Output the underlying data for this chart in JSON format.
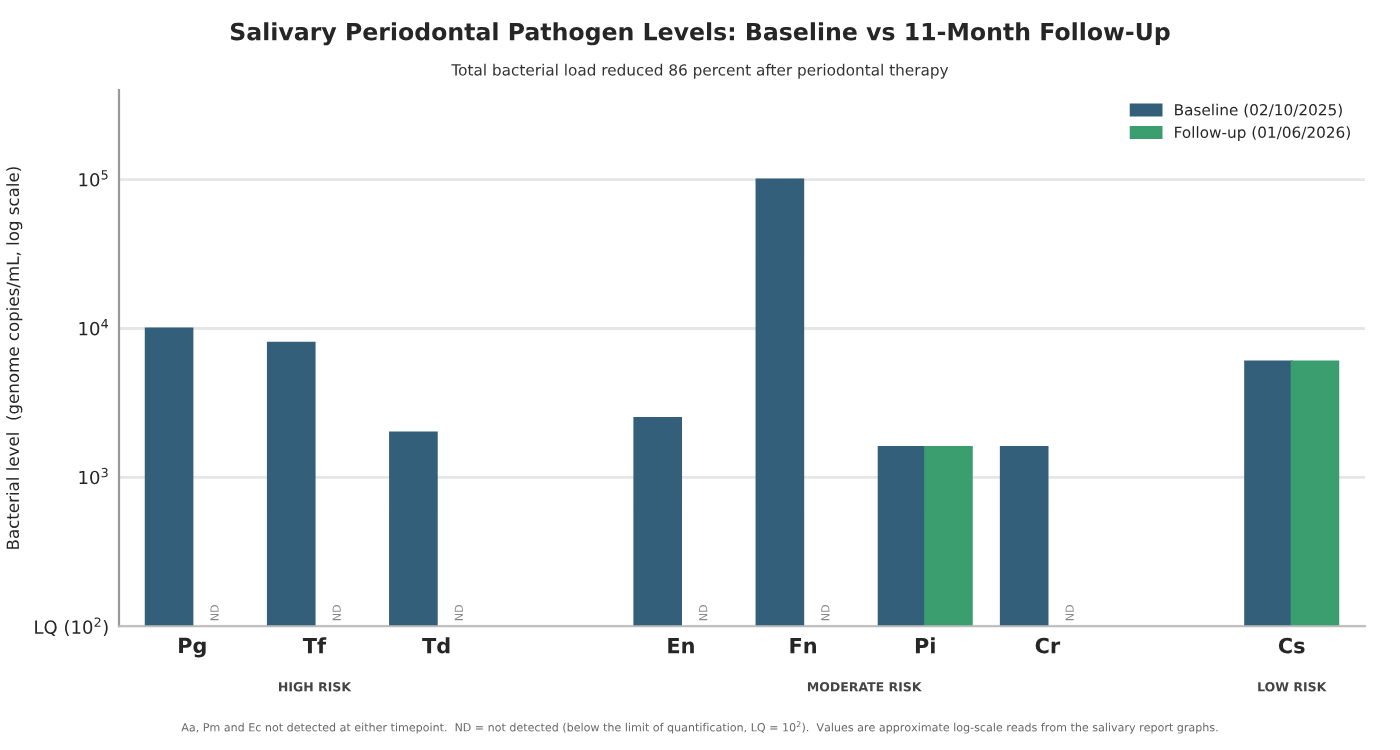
{
  "chart_data": {
    "type": "bar",
    "title": "Salivary Periodontal Pathogen Levels: Baseline vs 11-Month Follow-Up",
    "subtitle": "Total bacterial load reduced 86 percent after periodontal therapy",
    "ylabel": "Bacterial level  (genome copies/mL, log scale)",
    "categories": [
      "Pg",
      "Tf",
      "Td",
      null,
      "En",
      "Fn",
      "Pi",
      "Cr",
      null,
      "Cs"
    ],
    "series": [
      {
        "name": "Baseline (02/10/2025)",
        "color": "#335f7a",
        "values": [
          10000,
          8000,
          2000,
          null,
          2500,
          100000,
          1600,
          1600,
          null,
          6000
        ]
      },
      {
        "name": "Follow-up (01/06/2026)",
        "color": "#3a9e6e",
        "values": [
          null,
          null,
          null,
          null,
          null,
          null,
          1600,
          null,
          null,
          6000
        ],
        "value_labels": [
          "ND",
          "ND",
          "ND",
          null,
          "ND",
          "ND",
          null,
          "ND",
          null,
          null
        ]
      }
    ],
    "log": "y",
    "ylim": [
      100,
      400000
    ],
    "yticks": [
      {
        "value": 100,
        "label": "LQ (10$^{2}$)"
      },
      {
        "value": 1000,
        "label": "10$^{3}$"
      },
      {
        "value": 10000,
        "label": "10$^{4}$"
      },
      {
        "value": 100000,
        "label": "10$^{5}$"
      }
    ],
    "grid": "y",
    "legend": "top right",
    "annotations": [
      "HIGH RISK",
      "MODERATE RISK",
      "LOW RISK",
      "Aa, Pm and Ec not detected at either timepoint.  ND = not detected (below the limit of quantification, LQ = 10$^{2}$).  Values are approximate log-scale reads from the salivary report graphs."
    ]
  }
}
